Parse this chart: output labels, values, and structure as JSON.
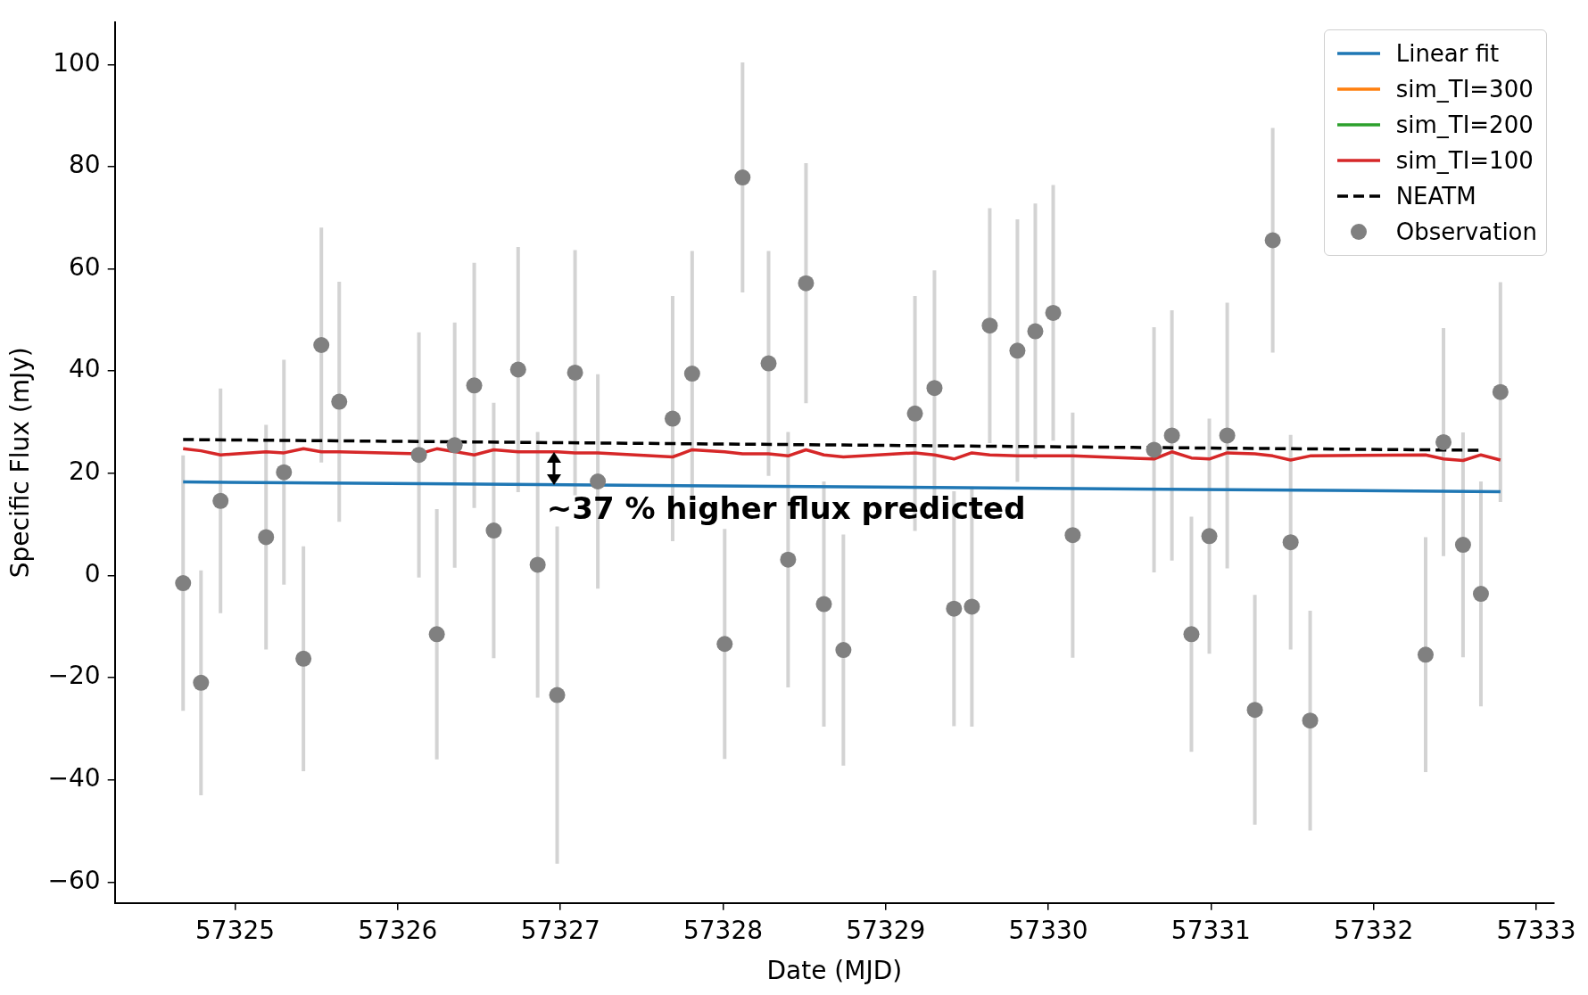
{
  "chart_data": {
    "type": "scatter",
    "xlabel": "Date (MJD)",
    "ylabel": "Specific Flux (mJy)",
    "xlim": [
      57324.26,
      57333.11
    ],
    "ylim": [
      -64.1,
      108.3
    ],
    "xticks": [
      57325,
      57326,
      57327,
      57328,
      57329,
      57330,
      57331,
      57332,
      57333
    ],
    "yticks": [
      {
        "value": -60,
        "label": "−60"
      },
      {
        "value": -40,
        "label": "−40"
      },
      {
        "value": -20,
        "label": "−20"
      },
      0,
      20,
      40,
      60,
      80,
      100
    ],
    "legend": "top right",
    "grid": false,
    "annotations": [
      "~37 % higher flux predicted"
    ],
    "series": [
      {
        "name": "Linear fit",
        "type": "line",
        "color": "#1f77b4",
        "line_style": "solid",
        "x": [
          57324.68,
          57332.78
        ],
        "values": [
          18.3,
          16.4
        ]
      },
      {
        "name": "sim_TI=300",
        "type": "line",
        "color": "#ff7f0e",
        "line_style": "solid"
      },
      {
        "name": "sim_TI=200",
        "type": "line",
        "color": "#2ca02c",
        "line_style": "solid"
      },
      {
        "name": "sim_TI=100",
        "type": "line",
        "color": "#d62728",
        "line_style": "solid",
        "x": [
          57324.68,
          57324.79,
          57324.91,
          57325.19,
          57325.3,
          57325.42,
          57325.53,
          57325.64,
          57326.13,
          57326.24,
          57326.35,
          57326.47,
          57326.59,
          57326.74,
          57326.86,
          57326.98,
          57327.09,
          57327.23,
          57327.69,
          57327.81,
          57328.01,
          57328.12,
          57328.28,
          57328.4,
          57328.51,
          57328.62,
          57328.74,
          57329.18,
          57329.3,
          57329.42,
          57329.53,
          57329.64,
          57329.81,
          57329.92,
          57330.03,
          57330.15,
          57330.65,
          57330.76,
          57330.88,
          57330.99,
          57331.1,
          57331.27,
          57331.38,
          57331.49,
          57331.61,
          57332.32,
          57332.43,
          57332.55,
          57332.66,
          57332.78
        ],
        "values": [
          24.8,
          24.4,
          23.6,
          24.2,
          24.0,
          24.8,
          24.2,
          24.2,
          23.8,
          24.8,
          null,
          23.6,
          24.6,
          24.2,
          24.2,
          24.2,
          24.0,
          24.0,
          23.2,
          24.6,
          24.2,
          23.8,
          23.8,
          23.4,
          24.6,
          23.6,
          23.2,
          24.0,
          23.6,
          22.8,
          24.0,
          23.6,
          23.4,
          23.4,
          23.4,
          23.4,
          22.8,
          24.2,
          23.0,
          22.8,
          24.0,
          23.8,
          23.4,
          22.6,
          23.4,
          23.6,
          22.8,
          22.5,
          23.6,
          22.6
        ]
      },
      {
        "name": "NEATM",
        "type": "line",
        "color": "#000000",
        "line_style": "dashed",
        "x": [
          57324.68,
          57332.66
        ],
        "values": [
          26.6,
          24.5
        ]
      },
      {
        "name": "Observation",
        "color": "#808080",
        "marker": "circle",
        "x": [
          57324.68,
          57324.79,
          57324.91,
          57325.19,
          57325.3,
          57325.42,
          57325.53,
          57325.64,
          57326.13,
          57326.24,
          57326.35,
          57326.47,
          57326.59,
          57326.74,
          57326.86,
          57326.98,
          57327.09,
          57327.23,
          57327.69,
          57327.81,
          57328.01,
          57328.12,
          57328.28,
          57328.4,
          57328.51,
          57328.62,
          57328.74,
          57329.18,
          57329.3,
          57329.42,
          57329.53,
          57329.64,
          57329.81,
          57329.92,
          57330.03,
          57330.15,
          57330.65,
          57330.76,
          57330.88,
          57330.99,
          57331.1,
          57331.27,
          57331.38,
          57331.49,
          57331.61,
          57332.32,
          57332.43,
          57332.55,
          57332.66,
          57332.78
        ],
        "values": [
          -1.5,
          -21,
          14.6,
          7.5,
          20.2,
          -16.3,
          45.1,
          34,
          23.6,
          -11.5,
          25.5,
          37.2,
          8.8,
          40.3,
          2.1,
          -23.4,
          39.7,
          18.4,
          30.7,
          39.5,
          -13.4,
          77.9,
          41.5,
          3.1,
          57.2,
          -5.6,
          -14.6,
          31.7,
          36.7,
          -6.5,
          -6.1,
          48.9,
          44,
          47.8,
          51.4,
          7.9,
          24.6,
          27.4,
          -11.5,
          7.7,
          27.4,
          -26.3,
          65.6,
          6.5,
          -28.4,
          -15.5,
          26.1,
          6,
          -3.6,
          35.9
        ],
        "errors": [
          25,
          22,
          22,
          22,
          22,
          22,
          23,
          23.5,
          24,
          24.5,
          24,
          24,
          25,
          24,
          26,
          33,
          24,
          21,
          24,
          24,
          22.5,
          22.5,
          22,
          25,
          23.5,
          24,
          22.6,
          23,
          23,
          23,
          23.5,
          23,
          25.7,
          25,
          25,
          24,
          24,
          24.5,
          23,
          23,
          26,
          22.5,
          22,
          21,
          21.5,
          23,
          22.3,
          22,
          22,
          21.5
        ]
      }
    ]
  }
}
